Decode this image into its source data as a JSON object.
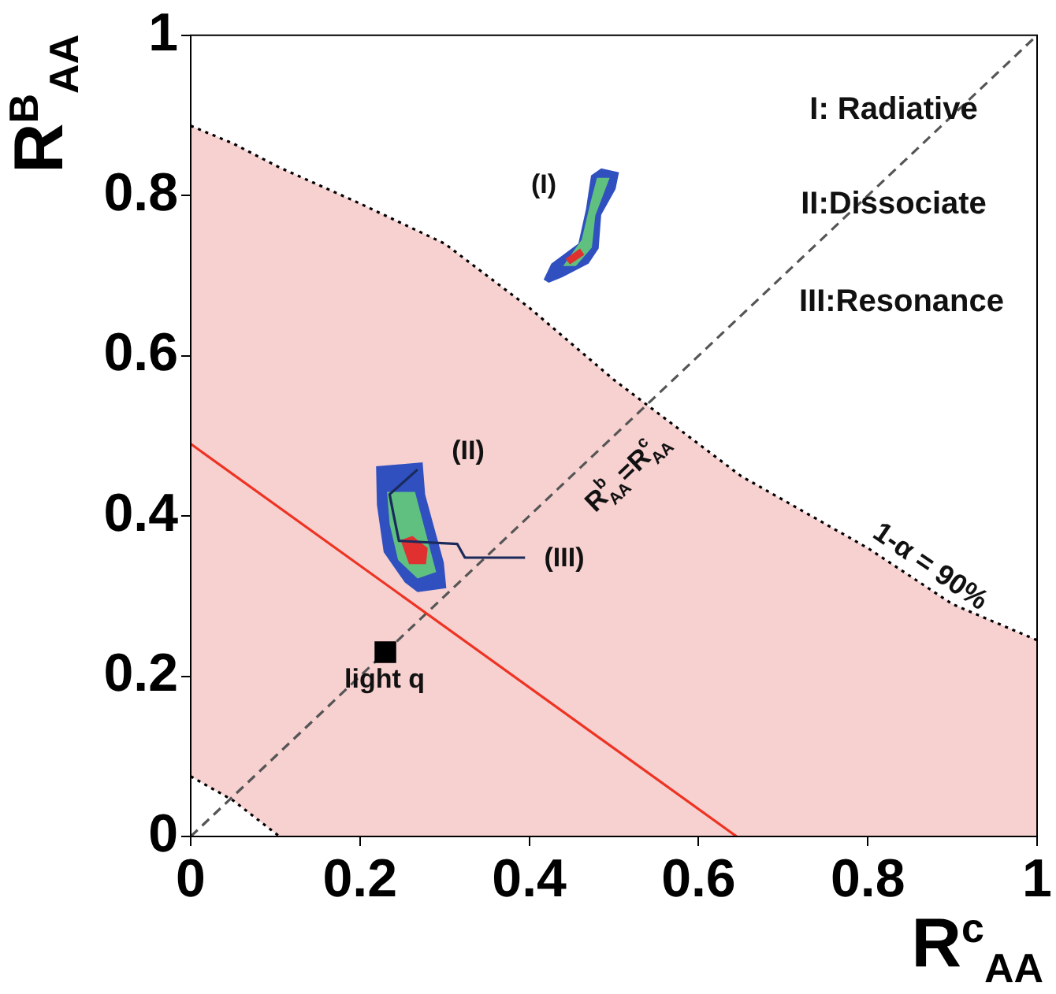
{
  "chart_data": {
    "type": "line",
    "xlabel": "R$^{c}$$_{AA}$",
    "ylabel": "R$^{B}$$_{AA}$",
    "xlim": [
      0,
      1
    ],
    "ylim": [
      0,
      1
    ],
    "xticks": [
      0,
      0.2,
      0.4,
      0.6,
      0.8,
      1
    ],
    "yticks": [
      0,
      0.2,
      0.4,
      0.6,
      0.8,
      1
    ],
    "grid": false,
    "legend": false,
    "series": [
      {
        "color": "#000000",
        "line_style": "dotted",
        "x": [
          0,
          0.05,
          0.105,
          0.2,
          0.3,
          0.4,
          0.5,
          0.6,
          0.65,
          0.7,
          0.8,
          0.9,
          1
        ],
        "values": [
          0.887,
          0.865,
          0.835,
          0.79,
          0.74,
          0.66,
          0.57,
          0.49,
          0.45,
          0.42,
          0.36,
          0.29,
          0.245
        ],
        "lower": [
          0.075,
          0.045,
          0,
          0,
          0,
          0,
          0,
          0,
          0,
          0,
          0,
          0,
          0
        ],
        "upper": [
          0.887,
          0.865,
          0.835,
          0.79,
          0.74,
          0.66,
          0.57,
          0.49,
          0.45,
          0.42,
          0.36,
          0.29,
          0.245
        ]
      },
      {
        "color": "#000000",
        "line_style": "dotted",
        "x": [
          0,
          0.05,
          0.105
        ],
        "values": [
          0.075,
          0.045,
          0
        ]
      },
      {
        "color": "#555555",
        "line_style": "dashed",
        "x": [
          0,
          1
        ],
        "values": [
          0,
          1
        ]
      },
      {
        "color": "#ee3322",
        "line_style": "solid",
        "x": [
          0,
          0.645
        ],
        "values": [
          0.49,
          0
        ]
      },
      {
        "type": "area",
        "color": "#3050c0",
        "x": [
          0.417,
          0.426,
          0.458,
          0.467,
          0.473,
          0.485,
          0.506,
          0.502,
          0.485,
          0.482,
          0.47,
          0.439,
          0.423
        ],
        "values": [
          0.695,
          0.715,
          0.74,
          0.783,
          0.825,
          0.834,
          0.829,
          0.808,
          0.776,
          0.734,
          0.715,
          0.698,
          0.691
        ]
      },
      {
        "type": "area",
        "color": "#60c080",
        "x": [
          0.44,
          0.462,
          0.472,
          0.48,
          0.495,
          0.478,
          0.474,
          0.455
        ],
        "values": [
          0.712,
          0.745,
          0.79,
          0.822,
          0.822,
          0.775,
          0.735,
          0.712
        ]
      },
      {
        "type": "area",
        "color": "#e03030",
        "x": [
          0.443,
          0.46,
          0.465,
          0.448
        ],
        "values": [
          0.721,
          0.734,
          0.726,
          0.714
        ]
      },
      {
        "type": "area",
        "color": "#3050c0",
        "x": [
          0.219,
          0.274,
          0.277,
          0.287,
          0.299,
          0.302,
          0.268,
          0.253,
          0.228,
          0.22
        ],
        "values": [
          0.462,
          0.467,
          0.427,
          0.388,
          0.342,
          0.31,
          0.305,
          0.317,
          0.355,
          0.414
        ]
      },
      {
        "type": "area",
        "color": "#60c080",
        "x": [
          0.232,
          0.265,
          0.28,
          0.29,
          0.268,
          0.245,
          0.235
        ],
        "values": [
          0.43,
          0.43,
          0.37,
          0.33,
          0.322,
          0.345,
          0.39
        ]
      },
      {
        "type": "area",
        "color": "#e03030",
        "x": [
          0.248,
          0.262,
          0.28,
          0.278,
          0.258
        ],
        "values": [
          0.37,
          0.375,
          0.36,
          0.34,
          0.34
        ]
      },
      {
        "color": "#1a2a5a",
        "line_style": "solid",
        "x": [
          0.268,
          0.235,
          0.24,
          0.246,
          0.315,
          0.324,
          0.395
        ],
        "values": [
          0.458,
          0.427,
          0.4,
          0.369,
          0.365,
          0.348,
          0.348
        ]
      },
      {
        "type": "scatter",
        "color": "#000000",
        "marker": "square",
        "x": [
          0.23
        ],
        "values": [
          0.23
        ]
      }
    ],
    "annotations": [
      "I: Radiative",
      "II:Dissociate",
      "III:Resonance",
      "(I)",
      "(II)",
      "(III)",
      "light q",
      "R$^{b}$$_{AA}$=R$^{c}$$_{AA}$",
      "1-α = 90%"
    ]
  }
}
